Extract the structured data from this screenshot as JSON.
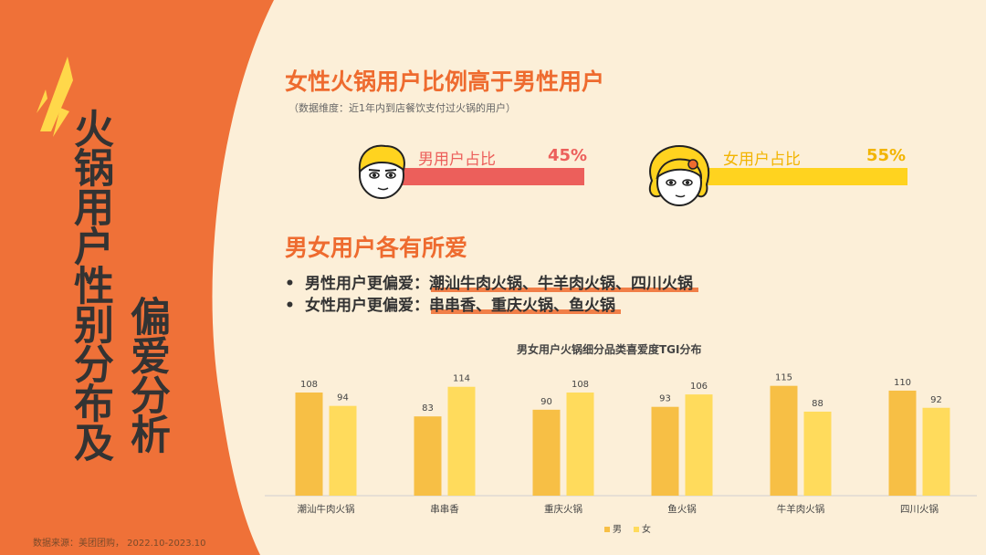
{
  "sidebar": {
    "title_col1": "火锅用户性别分布及",
    "title_col2": "偏爱分析",
    "source": "数据来源：美团团购， 2022.10-2023.10"
  },
  "header": {
    "title": "女性火锅用户比例高于男性用户",
    "subtitle": "（数据维度：近1年内到店餐饮支付过火锅的用户）"
  },
  "ratio": {
    "male_label": "男用户占比",
    "male_pct": "45%",
    "female_label": "女用户占比",
    "female_pct": "55%"
  },
  "preference": {
    "title": "男女用户各有所爱",
    "male_prefix": "男性用户更偏爱：",
    "male_items": "潮汕牛肉火锅、牛羊肉火锅、四川火锅",
    "female_prefix": "女性用户更偏爱：",
    "female_items": "串串香、重庆火锅、鱼火锅",
    "bullet": "•"
  },
  "colors": {
    "orange": "#ee6b2f",
    "male_bar": "#f7bf45",
    "female_bar": "#ffdb5c",
    "male_ratio": "#ec5f5b",
    "female_ratio": "#ffd31f"
  },
  "chart_data": {
    "type": "bar",
    "title": "男女用户火锅细分品类喜爱度TGI分布",
    "categories": [
      "潮汕牛肉火锅",
      "串串香",
      "重庆火锅",
      "鱼火锅",
      "牛羊肉火锅",
      "四川火锅"
    ],
    "series": [
      {
        "name": "男",
        "values": [
          108,
          83,
          90,
          93,
          115,
          110
        ]
      },
      {
        "name": "女",
        "values": [
          94,
          114,
          108,
          106,
          88,
          92
        ]
      }
    ],
    "ylim": [
      0,
      130
    ],
    "legend": "bottom-right",
    "grid": false
  }
}
